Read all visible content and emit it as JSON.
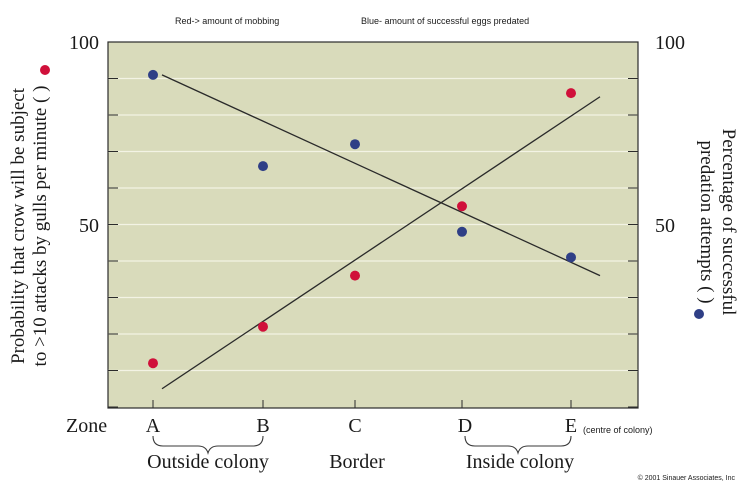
{
  "chart_data": {
    "type": "scatter",
    "notes": {
      "red": "Red-> amount of mobbing",
      "blue": "Blue- amount of successful eggs predated"
    },
    "left_axis": {
      "label_line1": "Probability that crow will be subject",
      "label_line2": "to >10 attacks by gulls per minute (",
      "label_close": ")",
      "ticks": [
        "100",
        "50"
      ],
      "tick_values": [
        100,
        50
      ],
      "ylim": [
        0,
        100
      ]
    },
    "right_axis": {
      "label_line1": "Percentage of successful",
      "label_line2": "predation attempts (",
      "label_close": ")",
      "ticks": [
        "100",
        "50"
      ],
      "tick_values": [
        100,
        50
      ],
      "ylim": [
        0,
        100
      ]
    },
    "x_axis": {
      "label": "Zone",
      "categories": [
        "A",
        "B",
        "C",
        "D",
        "E"
      ],
      "center_note": "(centre of colony)",
      "groups": [
        {
          "label": "Outside colony",
          "from": "A",
          "to": "B"
        },
        {
          "label": "Border",
          "at": "C"
        },
        {
          "label": "Inside colony",
          "from": "D",
          "to": "E"
        }
      ]
    },
    "series": [
      {
        "name": "mobbing",
        "color": "#d0103a",
        "values": [
          12,
          22,
          36,
          55,
          86
        ],
        "trend": [
          5,
          85
        ]
      },
      {
        "name": "predation",
        "color": "#2f3f86",
        "values": [
          91,
          66,
          72,
          48,
          41
        ],
        "trend": [
          91,
          36
        ]
      }
    ],
    "grid": true,
    "copyright": "© 2001 Sinauer Associates, Inc"
  }
}
